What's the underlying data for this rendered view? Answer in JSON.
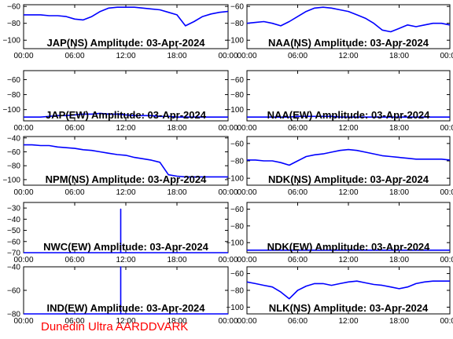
{
  "footer": "Dunedin Ultra AARDDVARK",
  "colors": {
    "trace": "#0000ff",
    "axes": "#000000",
    "footer": "#ff0000"
  },
  "chart_data": [
    {
      "type": "line",
      "title": "JAP(NS) Amplitude: 03-Apr-2024",
      "ylim": [
        -110,
        -58
      ],
      "yticks": [
        -60,
        -80,
        -100
      ],
      "xticks": [
        "00:00",
        "06:00",
        "12:00",
        "18:00",
        "00:00"
      ],
      "xlim": [
        0,
        24
      ],
      "series": [
        {
          "x": [
            0,
            1,
            2,
            3,
            4,
            5,
            6,
            7,
            8,
            9,
            10,
            11,
            12,
            13,
            14,
            15,
            16,
            17,
            18,
            19,
            20,
            21,
            22,
            23,
            24
          ],
          "values": [
            -70,
            -70,
            -70,
            -71,
            -71,
            -72,
            -75,
            -76,
            -72,
            -66,
            -62,
            -61,
            -61,
            -61,
            -62,
            -63,
            -64,
            -67,
            -70,
            -83,
            -78,
            -72,
            -69,
            -67,
            -66
          ]
        }
      ]
    },
    {
      "type": "line",
      "title": "NAA(NS) Amplitude: 03-Apr-2024",
      "ylim": [
        -110,
        -58
      ],
      "yticks": [
        -60,
        -80,
        -100
      ],
      "xticks": [
        "00:00",
        "06:00",
        "12:00",
        "18:00",
        "00:00"
      ],
      "xlim": [
        0,
        24
      ],
      "series": [
        {
          "x": [
            0,
            1,
            2,
            3,
            4,
            5,
            6,
            7,
            8,
            9,
            10,
            11,
            12,
            13,
            14,
            15,
            16,
            17,
            18,
            19,
            20,
            21,
            22,
            23,
            24
          ],
          "values": [
            -80,
            -79,
            -78,
            -80,
            -83,
            -78,
            -72,
            -66,
            -62,
            -61,
            -62,
            -64,
            -66,
            -70,
            -74,
            -80,
            -88,
            -90,
            -86,
            -82,
            -84,
            -82,
            -80,
            -80,
            -82
          ]
        }
      ]
    },
    {
      "type": "line",
      "title": "JAP(EW) Amplitude: 03-Apr-2024",
      "ylim": [
        -115,
        -48
      ],
      "yticks": [
        -60,
        -80,
        -100
      ],
      "xticks": [
        "00:00",
        "06:00",
        "12:00",
        "18:00",
        "00:00"
      ],
      "xlim": [
        0,
        24
      ],
      "series": [
        {
          "x": [
            0,
            1,
            2,
            3,
            4,
            5,
            6,
            7,
            8,
            9,
            10,
            11,
            12,
            13,
            14,
            15,
            16,
            17,
            18,
            19,
            20,
            21,
            22,
            23,
            24
          ],
          "values": [
            -110,
            -110,
            -110,
            -109,
            -108,
            -108,
            -107,
            -106,
            -106,
            -105,
            -106,
            -106,
            -107,
            -108,
            -108,
            -108,
            -109,
            -109,
            -110,
            -110,
            -110,
            -110,
            -110,
            -110,
            -110
          ]
        }
      ]
    },
    {
      "type": "line",
      "title": "NAA(EW) Amplitude: 03-Apr-2024",
      "ylim": [
        -115,
        -48
      ],
      "yticks": [
        -60,
        -80,
        -100
      ],
      "xticks": [
        "00:00",
        "06:00",
        "12:00",
        "18:00",
        "00:00"
      ],
      "xlim": [
        0,
        24
      ],
      "series": [
        {
          "x": [
            0,
            1,
            2,
            3,
            4,
            5,
            6,
            7,
            8,
            9,
            10,
            11,
            12,
            13,
            14,
            15,
            16,
            17,
            18,
            19,
            20,
            21,
            22,
            23,
            24
          ],
          "values": [
            -110,
            -110,
            -110,
            -110,
            -110,
            -110,
            -109,
            -109,
            -109,
            -109,
            -109,
            -110,
            -110,
            -110,
            -110,
            -110,
            -110,
            -110,
            -110,
            -110,
            -110,
            -110,
            -110,
            -110,
            -110
          ]
        }
      ]
    },
    {
      "type": "line",
      "title": "NPM(NS) Amplitude: 03-Apr-2024",
      "ylim": [
        -108,
        -38
      ],
      "yticks": [
        -40,
        -60,
        -80,
        -100
      ],
      "xticks": [
        "00:00",
        "06:00",
        "12:00",
        "18:00",
        "00:00"
      ],
      "xlim": [
        0,
        24
      ],
      "series": [
        {
          "x": [
            0,
            1,
            2,
            3,
            4,
            5,
            6,
            7,
            8,
            9,
            10,
            11,
            12,
            13,
            14,
            15,
            16,
            17,
            18,
            19,
            20,
            21,
            22,
            23,
            24
          ],
          "values": [
            -50,
            -50,
            -51,
            -51,
            -53,
            -54,
            -55,
            -57,
            -58,
            -60,
            -62,
            -64,
            -65,
            -68,
            -70,
            -72,
            -75,
            -93,
            -95,
            -96,
            -96,
            -96,
            -96,
            -96,
            -96
          ]
        }
      ]
    },
    {
      "type": "line",
      "title": "NDK(NS) Amplitude: 03-Apr-2024",
      "ylim": [
        -108,
        -52
      ],
      "yticks": [
        -60,
        -80,
        -100
      ],
      "xticks": [
        "00:00",
        "06:00",
        "12:00",
        "18:00",
        "00:00"
      ],
      "xlim": [
        0,
        24
      ],
      "series": [
        {
          "x": [
            0,
            1,
            2,
            3,
            4,
            5,
            6,
            7,
            8,
            9,
            10,
            11,
            12,
            13,
            14,
            15,
            16,
            17,
            18,
            19,
            20,
            21,
            22,
            23,
            24
          ],
          "values": [
            -79,
            -79,
            -80,
            -80,
            -82,
            -85,
            -80,
            -75,
            -73,
            -72,
            -70,
            -68,
            -67,
            -68,
            -70,
            -72,
            -74,
            -75,
            -76,
            -77,
            -78,
            -78,
            -78,
            -78,
            -79
          ]
        }
      ]
    },
    {
      "type": "line",
      "title": "NWC(EW) Amplitude: 03-Apr-2024",
      "ylim": [
        -70,
        -25
      ],
      "yticks": [
        -30,
        -40,
        -50,
        -60,
        -70
      ],
      "xticks": [
        "00:00",
        "06:00",
        "12:00",
        "18:00",
        "00:00"
      ],
      "xlim": [
        0,
        24
      ],
      "series": [
        {
          "x": [
            0,
            11.4,
            11.4,
            11.4,
            24
          ],
          "values": [
            -70,
            -70,
            -31,
            -70,
            -70
          ]
        }
      ]
    },
    {
      "type": "line",
      "title": "NDK(EW) Amplitude: 03-Apr-2024",
      "ylim": [
        -112,
        -52
      ],
      "yticks": [
        -60,
        -80,
        -100
      ],
      "xticks": [
        "00:00",
        "06:00",
        "12:00",
        "18:00",
        "00:00"
      ],
      "xlim": [
        0,
        24
      ],
      "series": [
        {
          "x": [
            0,
            6,
            12,
            18,
            24
          ],
          "values": [
            -109,
            -109,
            -109,
            -109,
            -109
          ]
        }
      ]
    },
    {
      "type": "line",
      "title": "IND(EW) Amplitude: 03-Apr-2024",
      "ylim": [
        -80,
        -40
      ],
      "yticks": [
        -40,
        -60,
        -80
      ],
      "xticks": [
        "00:00",
        "06:00",
        "12:00",
        "18:00",
        "00:00"
      ],
      "xlim": [
        0,
        24
      ],
      "series": [
        {
          "x": [
            0,
            11.4,
            11.4,
            11.4,
            24
          ],
          "values": [
            -80,
            -80,
            -40,
            -80,
            -80
          ]
        }
      ]
    },
    {
      "type": "line",
      "title": "NLK(NS) Amplitude: 03-Apr-2024",
      "ylim": [
        -108,
        -52
      ],
      "yticks": [
        -60,
        -80,
        -100
      ],
      "xticks": [
        "00:00",
        "06:00",
        "12:00",
        "18:00",
        "00:00"
      ],
      "xlim": [
        0,
        24
      ],
      "series": [
        {
          "x": [
            0,
            1,
            2,
            3,
            4,
            5,
            6,
            7,
            8,
            9,
            10,
            11,
            12,
            13,
            14,
            15,
            16,
            17,
            18,
            19,
            20,
            21,
            22,
            23,
            24
          ],
          "values": [
            -70,
            -72,
            -74,
            -76,
            -82,
            -90,
            -80,
            -75,
            -72,
            -72,
            -74,
            -72,
            -70,
            -69,
            -71,
            -73,
            -74,
            -76,
            -78,
            -76,
            -72,
            -70,
            -69,
            -69,
            -69
          ]
        }
      ]
    }
  ]
}
